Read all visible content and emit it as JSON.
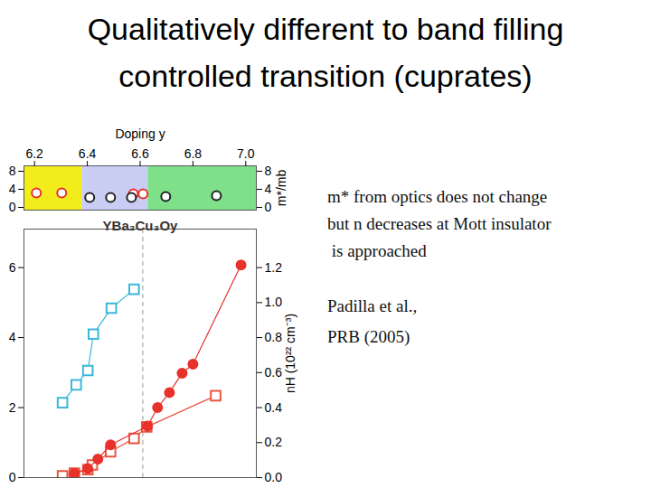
{
  "title": [
    "Qualitatively different to band filling",
    "controlled transition (cuprates)"
  ],
  "text": {
    "lines": [
      "m* from optics does not change",
      "but n decreases at Mott insulator",
      " is approached"
    ],
    "reference": [
      "Padilla et al.,",
      "PRB (2005)"
    ]
  },
  "chart_data": [
    {
      "type": "scatter",
      "xlabel": "Doping y",
      "y2label": "m*/mb",
      "xlim": [
        6.16,
        7.04
      ],
      "xticks": [
        6.2,
        6.4,
        6.6,
        6.8,
        {
          "value": 7,
          "label": "7.0"
        }
      ],
      "ylim": [
        -0.6,
        9.2
      ],
      "yticks": [
        0,
        4,
        8
      ],
      "regions": [
        {
          "x1": 6.16,
          "x2": 6.38,
          "color": "#f2ec1c"
        },
        {
          "x1": 6.38,
          "x2": 6.63,
          "color": "#c9cdf4"
        },
        {
          "x1": 6.63,
          "x2": 7.04,
          "color": "#7fe08a"
        }
      ],
      "series": [
        {
          "color": "#e8312a",
          "marker": "open_circle",
          "x": [
            6.207,
            6.303,
            6.574,
            6.611
          ],
          "values": [
            3.2,
            3.2,
            3.0,
            3.0
          ]
        },
        {
          "color": "#222222",
          "marker": "open_circle",
          "x": [
            6.409,
            6.488,
            6.567,
            6.697,
            6.889
          ],
          "values": [
            2.2,
            2.2,
            2.2,
            2.4,
            2.6
          ]
        }
      ]
    },
    {
      "type": "scatter",
      "annotation": "YBa₂Cu₃Oy",
      "y2label": "nH (10²² cm⁻³)",
      "tick_labels": "y",
      "xlim": [
        6.16,
        7.04
      ],
      "ylim": [
        0,
        7.1
      ],
      "yticks": [
        0,
        2,
        4,
        6
      ],
      "y2lim": [
        0,
        1.42
      ],
      "y2ticks": [
        {
          "value": 0,
          "label": "0.0"
        },
        0.2,
        0.4,
        0.6,
        0.8,
        {
          "value": 1,
          "label": "1.0"
        },
        1.2
      ],
      "vline": 6.61,
      "series": [
        {
          "color": "#3bb7d9",
          "marker": "open_square",
          "line_style": "solid",
          "x": [
            6.306,
            6.358,
            6.402,
            6.423,
            6.491,
            6.577
          ],
          "values": [
            2.14,
            2.65,
            3.06,
            4.1,
            4.84,
            5.38
          ]
        },
        {
          "color": "#e8553f",
          "marker": "open_square",
          "line_style": "solid",
          "x": [
            6.306,
            6.351,
            6.402,
            6.419,
            6.488,
            6.577,
            6.625,
            6.886
          ],
          "values": [
            0.05,
            0.13,
            0.23,
            0.36,
            0.74,
            1.12,
            1.45,
            2.34
          ]
        },
        {
          "color": "#e8312a",
          "marker": "filled_circle",
          "line_style": "solid",
          "axis": "y2",
          "x": [
            6.351,
            6.402,
            6.44,
            6.488,
            6.628,
            6.666,
            6.711,
            6.759,
            6.8,
            6.982
          ],
          "values": [
            0.025,
            0.051,
            0.106,
            0.187,
            0.294,
            0.4,
            0.486,
            0.597,
            0.648,
            1.215
          ]
        }
      ]
    }
  ]
}
